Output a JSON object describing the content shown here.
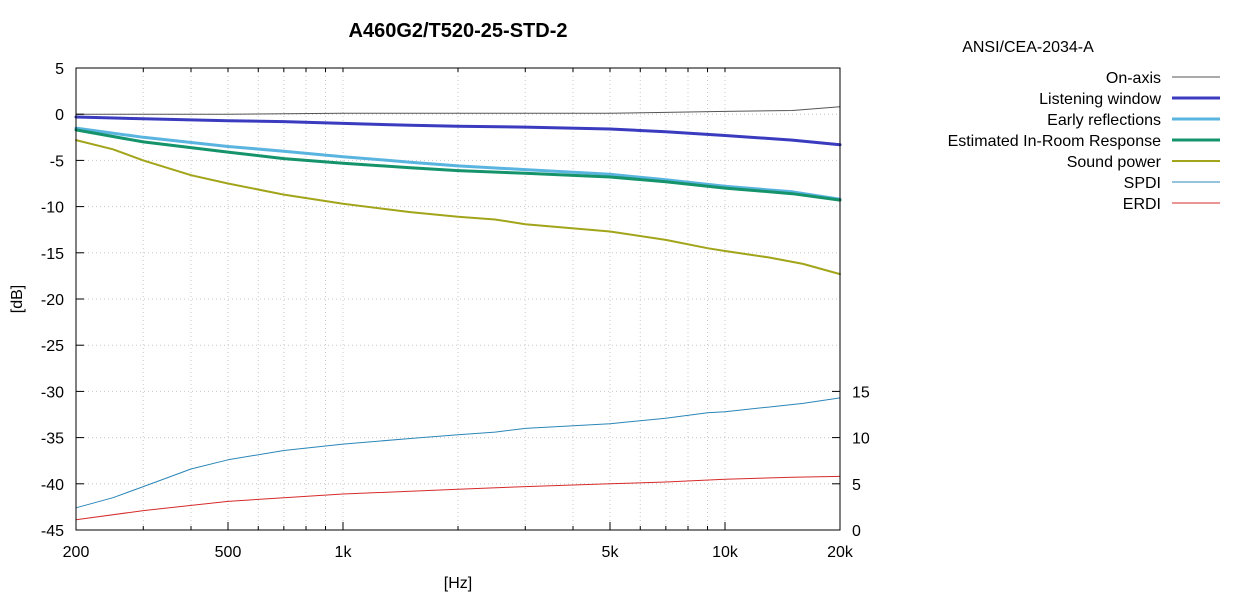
{
  "chart_data": {
    "type": "line",
    "title": "A460G2/T520-25-STD-2",
    "standard": "ANSI/CEA-2034-A",
    "xlabel": "[Hz]",
    "ylabel": "[dB]",
    "x_scale": "log",
    "xlim": [
      200,
      20000
    ],
    "ylim": [
      -45,
      5
    ],
    "y2lim": [
      0,
      15
    ],
    "grid": true,
    "legend_position": "top-right, outside plot",
    "x_ticks": [
      {
        "value": 200,
        "label": "200"
      },
      {
        "value": 500,
        "label": "500"
      },
      {
        "value": 1000,
        "label": "1k"
      },
      {
        "value": 5000,
        "label": "5k"
      },
      {
        "value": 10000,
        "label": "10k"
      },
      {
        "value": 20000,
        "label": "20k"
      }
    ],
    "y_ticks": [
      {
        "value": 5,
        "label": "5"
      },
      {
        "value": 0,
        "label": "0"
      },
      {
        "value": -5,
        "label": "-5"
      },
      {
        "value": -10,
        "label": "-10"
      },
      {
        "value": -15,
        "label": "-15"
      },
      {
        "value": -20,
        "label": "-20"
      },
      {
        "value": -25,
        "label": "-25"
      },
      {
        "value": -30,
        "label": "-30"
      },
      {
        "value": -35,
        "label": "-35"
      },
      {
        "value": -40,
        "label": "-40"
      },
      {
        "value": -45,
        "label": "-45"
      }
    ],
    "y2_ticks": [
      {
        "value": 15,
        "label": "15"
      },
      {
        "value": 10,
        "label": "10"
      },
      {
        "value": 5,
        "label": "5"
      },
      {
        "value": 0,
        "label": "0"
      }
    ],
    "series": [
      {
        "name": "On-axis",
        "axis": "y",
        "color": "#555555",
        "width": 1,
        "x": [
          200,
          300,
          500,
          1000,
          2000,
          3000,
          5000,
          7000,
          10000,
          15000,
          20000
        ],
        "y": [
          0.0,
          0.0,
          0.0,
          0.1,
          0.1,
          0.1,
          0.1,
          0.2,
          0.3,
          0.4,
          0.8
        ]
      },
      {
        "name": "Listening window",
        "axis": "y",
        "color": "#3b3bbf",
        "width": 3,
        "x": [
          200,
          300,
          500,
          700,
          1000,
          1500,
          2000,
          3000,
          5000,
          7000,
          10000,
          15000,
          20000
        ],
        "y": [
          -0.3,
          -0.5,
          -0.7,
          -0.8,
          -1.0,
          -1.2,
          -1.3,
          -1.4,
          -1.6,
          -1.9,
          -2.3,
          -2.8,
          -3.3
        ]
      },
      {
        "name": "Early reflections",
        "axis": "y",
        "color": "#5ab4e0",
        "width": 3,
        "x": [
          200,
          300,
          500,
          700,
          1000,
          1500,
          2000,
          3000,
          5000,
          7000,
          10000,
          15000,
          20000
        ],
        "y": [
          -1.5,
          -2.5,
          -3.5,
          -4.0,
          -4.6,
          -5.2,
          -5.6,
          -6.0,
          -6.5,
          -7.1,
          -7.8,
          -8.4,
          -9.2
        ]
      },
      {
        "name": "Estimated In-Room Response",
        "axis": "y",
        "color": "#15936b",
        "width": 3,
        "x": [
          200,
          300,
          500,
          700,
          1000,
          1500,
          2000,
          3000,
          5000,
          7000,
          10000,
          15000,
          20000
        ],
        "y": [
          -1.7,
          -3.0,
          -4.1,
          -4.8,
          -5.3,
          -5.8,
          -6.1,
          -6.4,
          -6.8,
          -7.3,
          -8.0,
          -8.6,
          -9.3
        ]
      },
      {
        "name": "Sound power",
        "axis": "y",
        "color": "#a2a41a",
        "width": 2,
        "x": [
          200,
          250,
          300,
          400,
          500,
          700,
          1000,
          1500,
          2000,
          2500,
          3000,
          5000,
          7000,
          9000,
          10000,
          13000,
          16000,
          20000
        ],
        "y": [
          -2.8,
          -3.8,
          -5.0,
          -6.6,
          -7.5,
          -8.7,
          -9.7,
          -10.6,
          -11.1,
          -11.4,
          -11.9,
          -12.7,
          -13.6,
          -14.5,
          -14.8,
          -15.5,
          -16.2,
          -17.3
        ]
      },
      {
        "name": "SPDI",
        "axis": "y2",
        "color": "#2b86b8",
        "width": 1,
        "x": [
          200,
          250,
          300,
          400,
          500,
          700,
          1000,
          1500,
          2000,
          2500,
          3000,
          5000,
          7000,
          9000,
          10000,
          13000,
          16000,
          20000
        ],
        "y": [
          2.4,
          3.5,
          4.7,
          6.6,
          7.6,
          8.6,
          9.3,
          9.9,
          10.3,
          10.6,
          11.0,
          11.5,
          12.1,
          12.7,
          12.8,
          13.3,
          13.7,
          14.3
        ]
      },
      {
        "name": "ERDI",
        "axis": "y2",
        "color": "#d62a2a",
        "width": 1,
        "x": [
          200,
          300,
          500,
          700,
          1000,
          2000,
          3000,
          5000,
          7000,
          10000,
          15000,
          20000
        ],
        "y": [
          1.1,
          2.1,
          3.1,
          3.5,
          3.9,
          4.4,
          4.7,
          5.0,
          5.2,
          5.5,
          5.7,
          5.8
        ]
      }
    ]
  }
}
